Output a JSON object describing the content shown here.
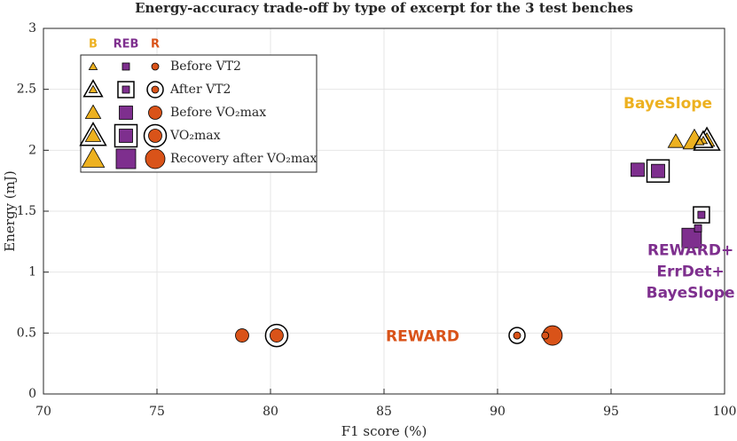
{
  "chart_data": {
    "type": "scatter",
    "title": "Energy-accuracy trade-off by type of excerpt for the 3 test benches",
    "x_label": "F1 score (%)",
    "y_label": "Energy (mJ)",
    "xlim": [
      70,
      100
    ],
    "xticks": [
      70,
      75,
      80,
      85,
      90,
      95,
      100
    ],
    "ylim": [
      0,
      3
    ],
    "yticks": [
      0,
      0.5,
      1,
      1.5,
      2,
      2.5,
      3
    ],
    "grid": true,
    "legend_position": "upper left",
    "phases": [
      "Before VT2",
      "After VT2",
      "Before VO₂max",
      "VO₂max",
      "Recovery after VO₂max"
    ],
    "series": [
      {
        "name": "B",
        "color": "#EDB120",
        "marker": "triangle",
        "x": [
          98.91,
          99.06,
          97.85,
          99.22,
          98.67
        ],
        "values": [
          2.07,
          2.08,
          2.07,
          2.08,
          2.08
        ]
      },
      {
        "name": "REB",
        "color": "#7E2F8E",
        "marker": "square",
        "x": [
          98.83,
          98.98,
          96.17,
          97.07,
          98.55
        ],
        "values": [
          1.36,
          1.47,
          1.84,
          1.83,
          1.28
        ]
      },
      {
        "name": "R",
        "color": "#D95319",
        "marker": "circle",
        "x": [
          92.1,
          90.86,
          78.75,
          80.27,
          92.42
        ],
        "values": [
          0.48,
          0.48,
          0.48,
          0.48,
          0.48
        ]
      }
    ],
    "annotations": [
      {
        "lines": [
          "BayeSlope"
        ],
        "color": "#EDB120",
        "x": 97.5,
        "y": 2.38
      },
      {
        "lines": [
          "REWARD"
        ],
        "color": "#D95319",
        "x": 86.7,
        "y": 0.47
      },
      {
        "lines": [
          "REWARD+",
          "ErrDet+",
          "BayeSlope"
        ],
        "color": "#7E2F8E",
        "x": 98.5,
        "y": 1.0
      }
    ]
  }
}
